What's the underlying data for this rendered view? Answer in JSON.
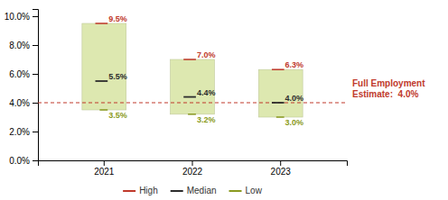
{
  "chart_data": {
    "type": "range",
    "categories": [
      "2021",
      "2022",
      "2023"
    ],
    "series": [
      {
        "name": "High",
        "color": "#c0392b",
        "values": [
          9.5,
          7.0,
          6.3
        ],
        "value_labels": [
          "9.5%",
          "7.0%",
          "6.3%"
        ]
      },
      {
        "name": "Median",
        "color": "#2c2c2c",
        "values": [
          5.5,
          4.4,
          4.0
        ],
        "value_labels": [
          "5.5%",
          "4.4%",
          "4.0%"
        ]
      },
      {
        "name": "Low",
        "color": "#8a9a20",
        "values": [
          3.5,
          3.2,
          3.0
        ],
        "value_labels": [
          "3.5%",
          "3.2%",
          "3.0%"
        ]
      }
    ],
    "color": "#dde8b0",
    "ylim": [
      0.0,
      10.5
    ],
    "yticks": [
      {
        "value": 0.0,
        "label": "0.0%"
      },
      {
        "value": 2.0,
        "label": "2.0%"
      },
      {
        "value": 4.0,
        "label": "4.0%"
      },
      {
        "value": 6.0,
        "label": "6.0%"
      },
      {
        "value": 8.0,
        "label": "8.0%"
      },
      {
        "value": 10.0,
        "label": "10.0%"
      }
    ],
    "data_labels": true,
    "legend": "bottom",
    "annotations": [
      {
        "text": "Full Employment\nEstimate:  4.0%",
        "y": 4.0,
        "color": "#c0392b",
        "line_style": "dashed"
      }
    ]
  }
}
